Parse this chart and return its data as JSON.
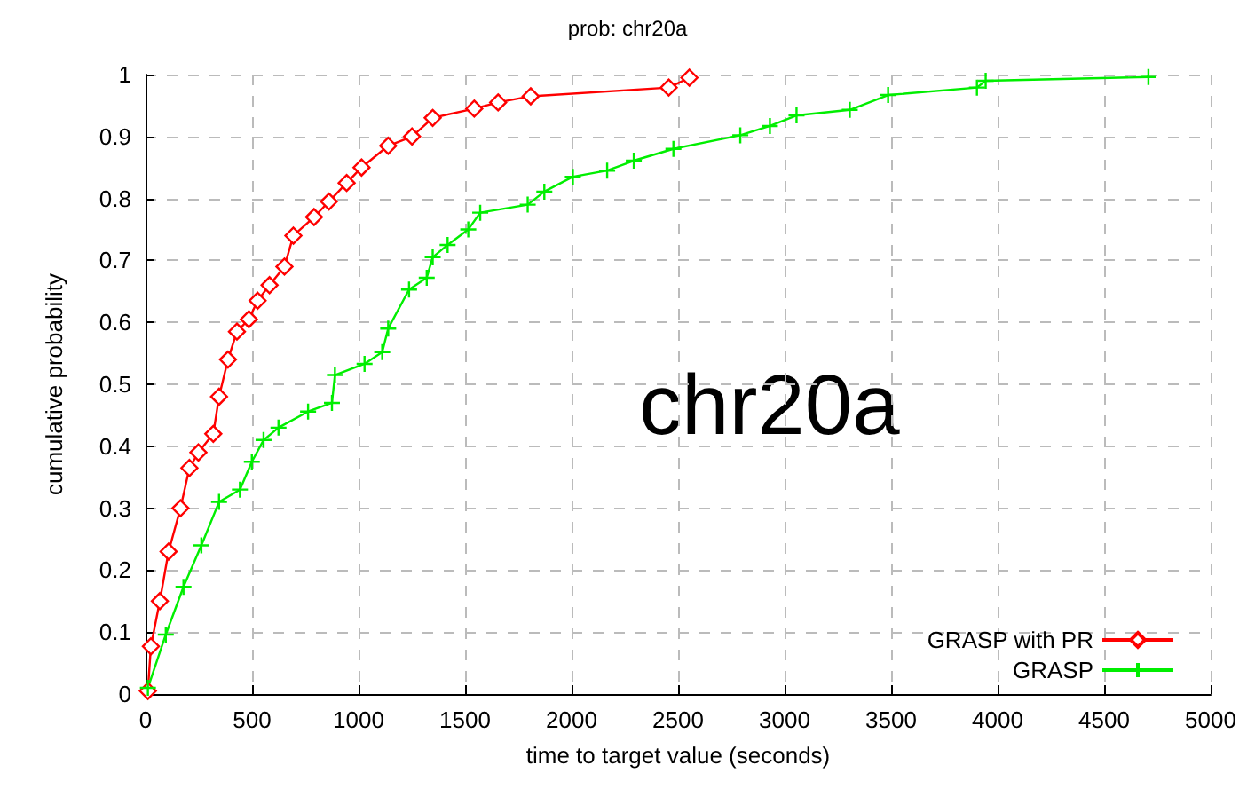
{
  "chart_data": {
    "type": "line",
    "title": "prob: chr20a",
    "xlabel": "time to target value (seconds)",
    "ylabel": "cumulative probability",
    "annotations": [
      "chr20a"
    ],
    "xlim": [
      0,
      5000
    ],
    "xticks": [
      0,
      500,
      1000,
      1500,
      2000,
      2500,
      3000,
      3500,
      4000,
      4500,
      5000
    ],
    "ylim": [
      0,
      1
    ],
    "yticks": [
      0,
      0.1,
      0.2,
      0.3,
      0.4,
      0.5,
      0.6,
      0.7,
      0.8,
      0.9,
      1
    ],
    "grid": true,
    "legend": "bottom right",
    "series": [
      {
        "name": "GRASP with PR",
        "color": "#ff0000",
        "marker": "diamond",
        "x": [
          11,
          25,
          67,
          108,
          164,
          206,
          248,
          318,
          345,
          387,
          429,
          485,
          526,
          582,
          652,
          694,
          791,
          861,
          944,
          1014,
          1139,
          1251,
          1348,
          1543,
          1655,
          1808,
          2456,
          2553
        ],
        "values": [
          0.005,
          0.077,
          0.15,
          0.23,
          0.3,
          0.365,
          0.39,
          0.42,
          0.48,
          0.54,
          0.585,
          0.605,
          0.635,
          0.66,
          0.69,
          0.74,
          0.77,
          0.795,
          0.825,
          0.85,
          0.885,
          0.9,
          0.93,
          0.945,
          0.955,
          0.965,
          0.979,
          0.995
        ]
      },
      {
        "name": "GRASP",
        "color": "#00ee00",
        "marker": "cross",
        "x": [
          11,
          95,
          178,
          262,
          345,
          443,
          499,
          554,
          624,
          763,
          875,
          889,
          1028,
          1111,
          1139,
          1237,
          1320,
          1348,
          1418,
          1515,
          1571,
          1794,
          1872,
          2006,
          2167,
          2292,
          2478,
          2792,
          2931,
          3056,
          3306,
          3486,
          3903,
          3944,
          4708
        ],
        "values": [
          0.01,
          0.096,
          0.173,
          0.24,
          0.31,
          0.33,
          0.375,
          0.41,
          0.43,
          0.456,
          0.47,
          0.515,
          0.533,
          0.552,
          0.59,
          0.653,
          0.672,
          0.705,
          0.725,
          0.75,
          0.777,
          0.79,
          0.811,
          0.835,
          0.845,
          0.861,
          0.88,
          0.902,
          0.917,
          0.934,
          0.943,
          0.967,
          0.979,
          0.99,
          0.996
        ]
      }
    ]
  }
}
